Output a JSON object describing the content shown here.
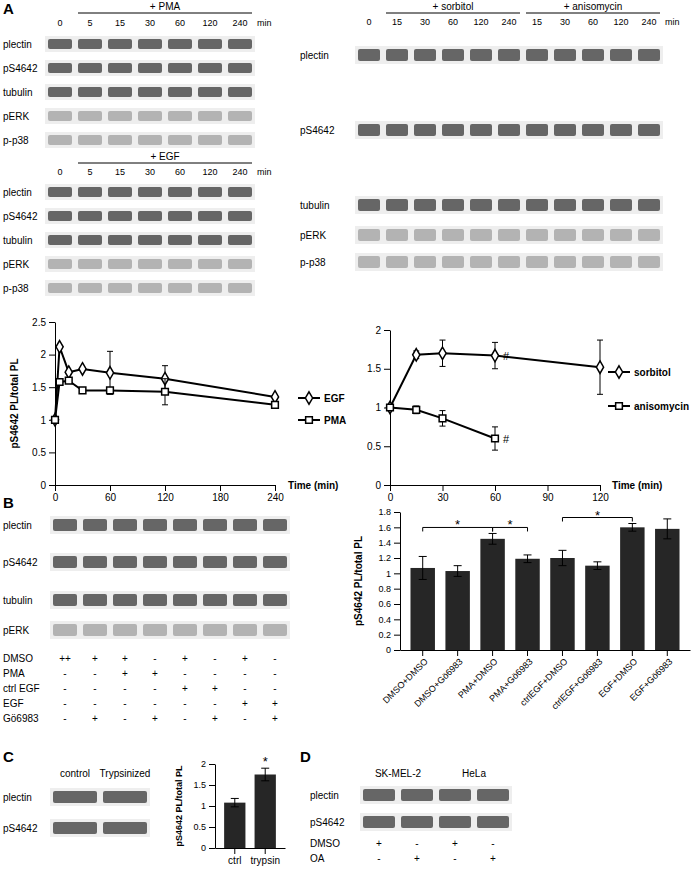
{
  "panel_labels": [
    "A",
    "B",
    "C",
    "D"
  ],
  "blots": [
    {
      "lane_groups": [
        {
          "label": null,
          "lanes": [
            "0"
          ]
        },
        {
          "label": "+ PMA",
          "lanes": [
            "5",
            "15",
            "30",
            "60",
            "120",
            "240"
          ]
        }
      ],
      "unit": "min",
      "rows": [
        "plectin",
        "pS4642",
        "tubulin",
        "pERK",
        "p-p38"
      ]
    },
    {
      "lane_groups": [
        {
          "label": null,
          "lanes": [
            "0"
          ]
        },
        {
          "label": "+ EGF",
          "lanes": [
            "5",
            "15",
            "30",
            "60",
            "120",
            "240"
          ]
        }
      ],
      "unit": "min",
      "rows": [
        "plectin",
        "pS4642",
        "tubulin",
        "pERK",
        "p-p38"
      ]
    },
    {
      "lane_groups": [
        {
          "label": null,
          "lanes": [
            "0"
          ]
        },
        {
          "label": "+ sorbitol",
          "lanes": [
            "15",
            "30",
            "60",
            "120",
            "240"
          ]
        },
        {
          "label": "+ anisomycin",
          "lanes": [
            "15",
            "30",
            "60",
            "120",
            "240"
          ]
        }
      ],
      "unit": "min",
      "rows": [
        "plectin",
        "pS4642",
        "tubulin",
        "pERK",
        "p-p38"
      ]
    },
    {
      "rows": [
        "plectin",
        "pS4642",
        "tubulin",
        "pERK"
      ],
      "conditions": [
        {
          "name": "DMSO",
          "marks": [
            "++",
            "+",
            "+",
            "-",
            "+",
            "-",
            "+",
            "-"
          ]
        },
        {
          "name": "PMA",
          "marks": [
            "-",
            "-",
            "+",
            "+",
            "-",
            "-",
            "-",
            "-"
          ]
        },
        {
          "name": "ctrl EGF",
          "marks": [
            "-",
            "-",
            "-",
            "-",
            "+",
            "+",
            "-",
            "-"
          ]
        },
        {
          "name": "EGF",
          "marks": [
            "-",
            "-",
            "-",
            "-",
            "-",
            "-",
            "+",
            "+"
          ]
        },
        {
          "name": "Gö6983",
          "marks": [
            "-",
            "+",
            "-",
            "+",
            "-",
            "+",
            "-",
            "+"
          ]
        }
      ]
    },
    {
      "lanes": [
        "control",
        "Trypsinized"
      ],
      "rows": [
        "plectin",
        "pS4642"
      ]
    },
    {
      "cell_lines": [
        "SK-MEL-2",
        "HeLa"
      ],
      "rows": [
        "plectin",
        "pS4642"
      ],
      "conditions": [
        {
          "name": "DMSO",
          "marks": [
            "+",
            "-",
            "+",
            "-"
          ]
        },
        {
          "name": "OA",
          "marks": [
            "-",
            "+",
            "-",
            "+"
          ]
        }
      ]
    }
  ],
  "chart_data": [
    {
      "type": "line",
      "x": [
        0,
        5,
        15,
        30,
        60,
        120,
        240
      ],
      "xlim": [
        0,
        240
      ],
      "xticks": [
        0,
        60,
        120,
        180,
        240
      ],
      "ylim": [
        0,
        2.5
      ],
      "yticks": [
        0,
        0.5,
        1,
        1.5,
        2,
        2.5
      ],
      "x_label": "Time (min)",
      "y_label": "pS4642 PL/total PL",
      "legend": "right",
      "grid": false,
      "series": [
        {
          "name": "EGF",
          "color": "#000000",
          "marker": "diamond",
          "line_style": "solid",
          "values": [
            1,
            2.12,
            1.73,
            1.78,
            1.72,
            1.63,
            1.35
          ],
          "errors": [
            0,
            0,
            0,
            0,
            0.33,
            0.2,
            0
          ]
        },
        {
          "name": "PMA",
          "color": "#000000",
          "marker": "square",
          "line_style": "solid",
          "values": [
            1,
            1.58,
            1.6,
            1.45,
            1.45,
            1.43,
            1.23
          ],
          "errors": [
            0,
            0,
            0,
            0,
            0,
            0.2,
            0
          ]
        }
      ]
    },
    {
      "type": "line",
      "x": [
        0,
        15,
        30,
        60,
        120
      ],
      "xlim": [
        0,
        120
      ],
      "xticks": [
        0,
        30,
        60,
        90,
        120
      ],
      "ylim": [
        0,
        2
      ],
      "yticks": [
        0,
        0.5,
        1,
        1.5,
        2
      ],
      "x_label": "Time (min)",
      "legend": "right",
      "grid": false,
      "series": [
        {
          "name": "sorbitol",
          "color": "#000000",
          "marker": "diamond",
          "line_style": "solid",
          "values": [
            1,
            1.68,
            1.7,
            1.67,
            1.52
          ],
          "errors": [
            0,
            0.05,
            0.17,
            0.17,
            0.35
          ]
        },
        {
          "name": "anisomycin",
          "color": "#000000",
          "marker": "square",
          "line_style": "solid",
          "values": [
            1,
            0.97,
            0.86,
            0.6,
            null
          ],
          "errors": [
            0,
            0.05,
            0.1,
            0.15,
            null
          ]
        }
      ],
      "annotations": [
        {
          "text": "#",
          "series": 0,
          "index": 3
        },
        {
          "text": "#",
          "series": 1,
          "index": 3
        }
      ]
    },
    {
      "type": "bar",
      "categories": [
        "DMSO+DMSO",
        "DMSO+Gö6983",
        "PMA+DMSO",
        "PMA+Gö6983",
        "ctrlEGF+DMSO",
        "ctrlEGF+Gö6983",
        "EGF+DMSO",
        "EGF+Gö6983"
      ],
      "values": [
        1.07,
        1.03,
        1.45,
        1.19,
        1.2,
        1.1,
        1.6,
        1.58
      ],
      "errors": [
        0.15,
        0.07,
        0.07,
        0.05,
        0.1,
        0.05,
        0.05,
        0.13
      ],
      "color": "#262626",
      "ylim": [
        0,
        1.8
      ],
      "yticks": [
        0,
        0.2,
        0.4,
        0.6,
        0.8,
        1,
        1.2,
        1.4,
        1.6,
        1.8
      ],
      "y_label": "pS4642 PL/total PL",
      "grid": false,
      "annotations": [
        {
          "text": "*",
          "between": [
            0,
            2
          ]
        },
        {
          "text": "*",
          "between": [
            2,
            3
          ]
        },
        {
          "text": "*",
          "between": [
            4,
            6
          ]
        }
      ]
    },
    {
      "type": "bar",
      "categories": [
        "ctrl",
        "trypsin"
      ],
      "values": [
        1.08,
        1.75
      ],
      "errors": [
        0.1,
        0.15
      ],
      "color": "#262626",
      "ylim": [
        0,
        2
      ],
      "yticks": [
        0,
        0.5,
        1,
        1.5,
        2
      ],
      "y_label": "pS4642 PL/total PL",
      "grid": false,
      "annotations": [
        {
          "text": "*",
          "index": 1
        }
      ]
    }
  ]
}
